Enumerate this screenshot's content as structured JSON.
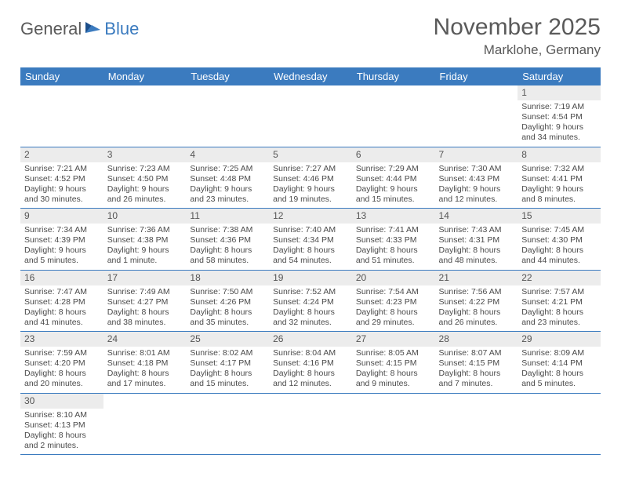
{
  "brand": {
    "part1": "General",
    "part2": "Blue"
  },
  "title": "November 2025",
  "location": "Marklohe, Germany",
  "colors": {
    "header_bg": "#3b7bbf",
    "header_text": "#ffffff",
    "daynum_bg": "#ececec",
    "row_border": "#3b7bbf",
    "body_text": "#4a4a4a",
    "title_text": "#5a5a5a"
  },
  "weekdays": [
    "Sunday",
    "Monday",
    "Tuesday",
    "Wednesday",
    "Thursday",
    "Friday",
    "Saturday"
  ],
  "first_weekday_index": 6,
  "days": [
    {
      "n": 1,
      "sunrise": "7:19 AM",
      "sunset": "4:54 PM",
      "daylight": "9 hours and 34 minutes."
    },
    {
      "n": 2,
      "sunrise": "7:21 AM",
      "sunset": "4:52 PM",
      "daylight": "9 hours and 30 minutes."
    },
    {
      "n": 3,
      "sunrise": "7:23 AM",
      "sunset": "4:50 PM",
      "daylight": "9 hours and 26 minutes."
    },
    {
      "n": 4,
      "sunrise": "7:25 AM",
      "sunset": "4:48 PM",
      "daylight": "9 hours and 23 minutes."
    },
    {
      "n": 5,
      "sunrise": "7:27 AM",
      "sunset": "4:46 PM",
      "daylight": "9 hours and 19 minutes."
    },
    {
      "n": 6,
      "sunrise": "7:29 AM",
      "sunset": "4:44 PM",
      "daylight": "9 hours and 15 minutes."
    },
    {
      "n": 7,
      "sunrise": "7:30 AM",
      "sunset": "4:43 PM",
      "daylight": "9 hours and 12 minutes."
    },
    {
      "n": 8,
      "sunrise": "7:32 AM",
      "sunset": "4:41 PM",
      "daylight": "9 hours and 8 minutes."
    },
    {
      "n": 9,
      "sunrise": "7:34 AM",
      "sunset": "4:39 PM",
      "daylight": "9 hours and 5 minutes."
    },
    {
      "n": 10,
      "sunrise": "7:36 AM",
      "sunset": "4:38 PM",
      "daylight": "9 hours and 1 minute."
    },
    {
      "n": 11,
      "sunrise": "7:38 AM",
      "sunset": "4:36 PM",
      "daylight": "8 hours and 58 minutes."
    },
    {
      "n": 12,
      "sunrise": "7:40 AM",
      "sunset": "4:34 PM",
      "daylight": "8 hours and 54 minutes."
    },
    {
      "n": 13,
      "sunrise": "7:41 AM",
      "sunset": "4:33 PM",
      "daylight": "8 hours and 51 minutes."
    },
    {
      "n": 14,
      "sunrise": "7:43 AM",
      "sunset": "4:31 PM",
      "daylight": "8 hours and 48 minutes."
    },
    {
      "n": 15,
      "sunrise": "7:45 AM",
      "sunset": "4:30 PM",
      "daylight": "8 hours and 44 minutes."
    },
    {
      "n": 16,
      "sunrise": "7:47 AM",
      "sunset": "4:28 PM",
      "daylight": "8 hours and 41 minutes."
    },
    {
      "n": 17,
      "sunrise": "7:49 AM",
      "sunset": "4:27 PM",
      "daylight": "8 hours and 38 minutes."
    },
    {
      "n": 18,
      "sunrise": "7:50 AM",
      "sunset": "4:26 PM",
      "daylight": "8 hours and 35 minutes."
    },
    {
      "n": 19,
      "sunrise": "7:52 AM",
      "sunset": "4:24 PM",
      "daylight": "8 hours and 32 minutes."
    },
    {
      "n": 20,
      "sunrise": "7:54 AM",
      "sunset": "4:23 PM",
      "daylight": "8 hours and 29 minutes."
    },
    {
      "n": 21,
      "sunrise": "7:56 AM",
      "sunset": "4:22 PM",
      "daylight": "8 hours and 26 minutes."
    },
    {
      "n": 22,
      "sunrise": "7:57 AM",
      "sunset": "4:21 PM",
      "daylight": "8 hours and 23 minutes."
    },
    {
      "n": 23,
      "sunrise": "7:59 AM",
      "sunset": "4:20 PM",
      "daylight": "8 hours and 20 minutes."
    },
    {
      "n": 24,
      "sunrise": "8:01 AM",
      "sunset": "4:18 PM",
      "daylight": "8 hours and 17 minutes."
    },
    {
      "n": 25,
      "sunrise": "8:02 AM",
      "sunset": "4:17 PM",
      "daylight": "8 hours and 15 minutes."
    },
    {
      "n": 26,
      "sunrise": "8:04 AM",
      "sunset": "4:16 PM",
      "daylight": "8 hours and 12 minutes."
    },
    {
      "n": 27,
      "sunrise": "8:05 AM",
      "sunset": "4:15 PM",
      "daylight": "8 hours and 9 minutes."
    },
    {
      "n": 28,
      "sunrise": "8:07 AM",
      "sunset": "4:15 PM",
      "daylight": "8 hours and 7 minutes."
    },
    {
      "n": 29,
      "sunrise": "8:09 AM",
      "sunset": "4:14 PM",
      "daylight": "8 hours and 5 minutes."
    },
    {
      "n": 30,
      "sunrise": "8:10 AM",
      "sunset": "4:13 PM",
      "daylight": "8 hours and 2 minutes."
    }
  ],
  "labels": {
    "sunrise": "Sunrise:",
    "sunset": "Sunset:",
    "daylight": "Daylight:"
  }
}
